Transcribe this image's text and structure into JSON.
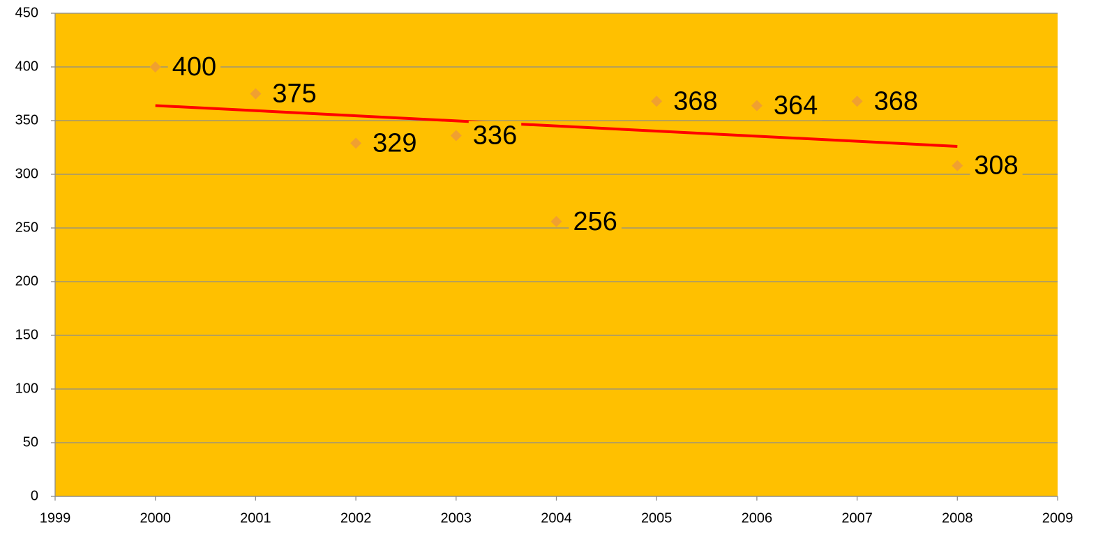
{
  "chart_data": {
    "type": "scatter",
    "x": [
      2000,
      2001,
      2002,
      2003,
      2004,
      2005,
      2006,
      2007,
      2008
    ],
    "values": [
      400,
      375,
      329,
      336,
      256,
      368,
      364,
      368,
      308
    ],
    "color": "#f0a030",
    "plot_background": "#ffc000",
    "trendline": {
      "x": [
        2000,
        2008
      ],
      "values": [
        364,
        326
      ],
      "color": "#ff0000"
    },
    "xlim": [
      1999,
      2009
    ],
    "xticks": [
      1999,
      2000,
      2001,
      2002,
      2003,
      2004,
      2005,
      2006,
      2007,
      2008,
      2009
    ],
    "ylim": [
      0,
      450
    ],
    "yticks": [
      0,
      50,
      100,
      150,
      200,
      250,
      300,
      350,
      400,
      450
    ],
    "grid": true
  }
}
